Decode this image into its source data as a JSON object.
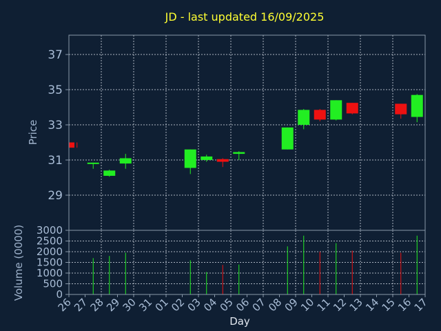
{
  "chart_data": {
    "type": "candlestick",
    "title": "JD - last updated 16/09/2025",
    "xlabel": "Day",
    "ylabel": "Price",
    "volume_label": "Volume (0000)",
    "x_ticks": [
      "26",
      "27",
      "28",
      "29",
      "30",
      "31",
      "01",
      "02",
      "03",
      "04",
      "05",
      "06",
      "07",
      "08",
      "09",
      "10",
      "11",
      "12",
      "13",
      "14",
      "15",
      "16",
      "17"
    ],
    "price_ticks": [
      29,
      31,
      33,
      35,
      37
    ],
    "price_ylim": [
      27.0,
      38.1
    ],
    "volume_ticks": [
      0,
      500,
      1000,
      1500,
      2000,
      2500,
      3000
    ],
    "volume_ylim": [
      0,
      3000
    ],
    "grid": true,
    "colors": {
      "up": "#22ee22",
      "down": "#ee1111",
      "title": "#ffff33",
      "background": "#0f1f33"
    },
    "candles": [
      {
        "x": 0,
        "open": 32.0,
        "high": 32.0,
        "low": 31.7,
        "close": 31.7,
        "volume": 0
      },
      {
        "x": 1,
        "open": 30.8,
        "high": 30.85,
        "low": 30.5,
        "close": 30.85,
        "volume": 1700
      },
      {
        "x": 2,
        "open": 30.1,
        "high": 30.45,
        "low": 30.05,
        "close": 30.4,
        "volume": 1800
      },
      {
        "x": 3,
        "open": 30.8,
        "high": 31.35,
        "low": 30.5,
        "close": 31.1,
        "volume": 1950
      },
      {
        "x": 7,
        "open": 30.55,
        "high": 31.6,
        "low": 30.2,
        "close": 31.6,
        "volume": 1600
      },
      {
        "x": 8,
        "open": 31.0,
        "high": 31.3,
        "low": 30.9,
        "close": 31.2,
        "volume": 1050
      },
      {
        "x": 9,
        "open": 31.05,
        "high": 31.1,
        "low": 30.6,
        "close": 30.9,
        "volume": 1380
      },
      {
        "x": 10,
        "open": 31.35,
        "high": 31.5,
        "low": 31.0,
        "close": 31.45,
        "volume": 1400
      },
      {
        "x": 13,
        "open": 31.6,
        "high": 32.85,
        "low": 31.6,
        "close": 32.85,
        "volume": 2250
      },
      {
        "x": 14,
        "open": 33.0,
        "high": 33.9,
        "low": 32.75,
        "close": 33.85,
        "volume": 2750
      },
      {
        "x": 15,
        "open": 33.85,
        "high": 33.9,
        "low": 33.2,
        "close": 33.3,
        "volume": 2000
      },
      {
        "x": 16,
        "open": 33.3,
        "high": 34.4,
        "low": 33.25,
        "close": 34.4,
        "volume": 2400
      },
      {
        "x": 17,
        "open": 34.25,
        "high": 34.25,
        "low": 33.6,
        "close": 33.65,
        "volume": 2050
      },
      {
        "x": 20,
        "open": 34.2,
        "high": 34.2,
        "low": 33.35,
        "close": 33.6,
        "volume": 1950
      },
      {
        "x": 21,
        "open": 33.45,
        "high": 34.75,
        "low": 33.15,
        "close": 34.7,
        "volume": 2750
      }
    ]
  }
}
